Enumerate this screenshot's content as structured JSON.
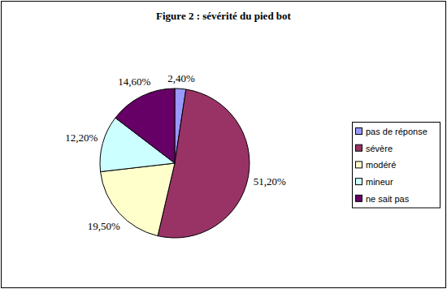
{
  "chart_data": {
    "type": "pie",
    "title": "Figure 2 : sévérité du pied bot",
    "categories": [
      "pas de réponse",
      "sévère",
      "modéré",
      "mineur",
      "ne sait pas"
    ],
    "values": [
      2.4,
      51.2,
      19.5,
      12.2,
      14.6
    ],
    "value_labels": [
      "2,40%",
      "51,20%",
      "19,50%",
      "12,20%",
      "14,60%"
    ],
    "colors": [
      "#9999ff",
      "#993366",
      "#ffffcc",
      "#ccffff",
      "#660066"
    ],
    "data_labels": true,
    "legend": "right"
  }
}
